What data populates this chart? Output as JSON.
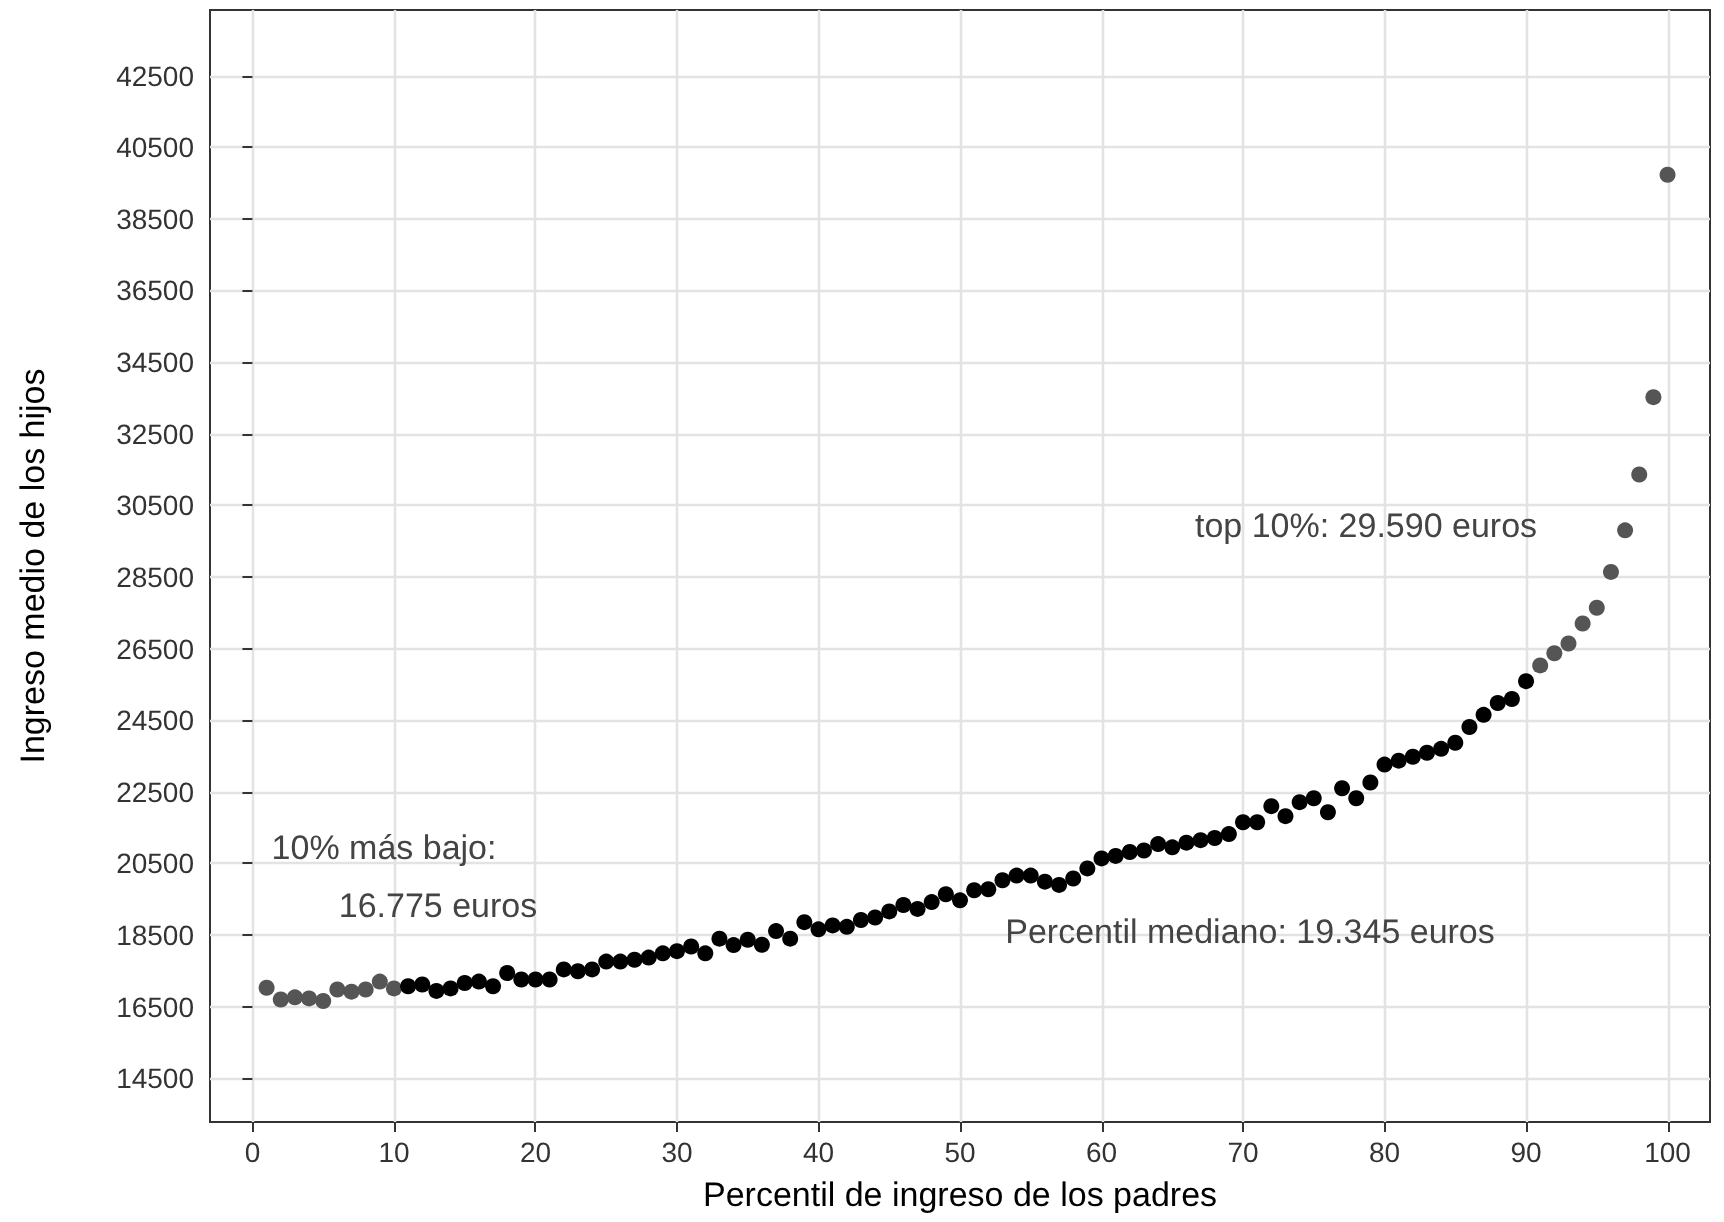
{
  "chart_data": {
    "type": "scatter",
    "xlabel": "Percentil de ingreso de los padres",
    "ylabel": "Ingreso medio de los hijos",
    "x": [
      1,
      2,
      3,
      4,
      5,
      6,
      7,
      8,
      9,
      10,
      11,
      12,
      13,
      14,
      15,
      16,
      17,
      18,
      19,
      20,
      21,
      22,
      23,
      24,
      25,
      26,
      27,
      28,
      29,
      30,
      31,
      32,
      33,
      34,
      35,
      36,
      37,
      38,
      39,
      40,
      41,
      42,
      43,
      44,
      45,
      46,
      47,
      48,
      49,
      50,
      51,
      52,
      53,
      54,
      55,
      56,
      57,
      58,
      59,
      60,
      61,
      62,
      63,
      64,
      65,
      66,
      67,
      68,
      69,
      70,
      71,
      72,
      73,
      74,
      75,
      76,
      77,
      78,
      79,
      80,
      81,
      82,
      83,
      84,
      85,
      86,
      87,
      88,
      89,
      90,
      91,
      92,
      93,
      94,
      95,
      96,
      97,
      98,
      99,
      100
    ],
    "values": [
      17030,
      16700,
      16760,
      16730,
      16660,
      16980,
      16920,
      16980,
      17200,
      17010,
      17070,
      17120,
      16940,
      17010,
      17160,
      17200,
      17070,
      17440,
      17260,
      17260,
      17260,
      17540,
      17490,
      17540,
      17760,
      17760,
      17810,
      17870,
      17990,
      18050,
      18180,
      17990,
      18400,
      18220,
      18370,
      18230,
      18610,
      18400,
      18860,
      18660,
      18770,
      18730,
      18920,
      18990,
      19160,
      19340,
      19230,
      19420,
      19640,
      19470,
      19750,
      19780,
      20030,
      20160,
      20160,
      19990,
      19900,
      20080,
      20360,
      20640,
      20710,
      20820,
      20860,
      21040,
      20950,
      21080,
      21150,
      21210,
      21320,
      21650,
      21650,
      22100,
      21820,
      22210,
      22320,
      21930,
      22600,
      22320,
      22760,
      23260,
      23370,
      23480,
      23590,
      23700,
      23870,
      24310,
      24650,
      24980,
      25090,
      25590,
      26030,
      26370,
      26640,
      27200,
      27640,
      28640,
      29800,
      31360,
      33520,
      39730
    ],
    "colors": [
      "#555555",
      "#555555",
      "#555555",
      "#555555",
      "#555555",
      "#555555",
      "#555555",
      "#555555",
      "#555555",
      "#555555",
      "#000000",
      "#000000",
      "#000000",
      "#000000",
      "#000000",
      "#000000",
      "#000000",
      "#000000",
      "#000000",
      "#000000",
      "#000000",
      "#000000",
      "#000000",
      "#000000",
      "#000000",
      "#000000",
      "#000000",
      "#000000",
      "#000000",
      "#000000",
      "#000000",
      "#000000",
      "#000000",
      "#000000",
      "#000000",
      "#000000",
      "#000000",
      "#000000",
      "#000000",
      "#000000",
      "#000000",
      "#000000",
      "#000000",
      "#000000",
      "#000000",
      "#000000",
      "#000000",
      "#000000",
      "#000000",
      "#000000",
      "#000000",
      "#000000",
      "#000000",
      "#000000",
      "#000000",
      "#000000",
      "#000000",
      "#000000",
      "#000000",
      "#000000",
      "#000000",
      "#000000",
      "#000000",
      "#000000",
      "#000000",
      "#000000",
      "#000000",
      "#000000",
      "#000000",
      "#000000",
      "#000000",
      "#000000",
      "#000000",
      "#000000",
      "#000000",
      "#000000",
      "#000000",
      "#000000",
      "#000000",
      "#000000",
      "#000000",
      "#000000",
      "#000000",
      "#000000",
      "#000000",
      "#000000",
      "#000000",
      "#000000",
      "#000000",
      "#000000",
      "#555555",
      "#555555",
      "#555555",
      "#555555",
      "#555555",
      "#555555",
      "#555555",
      "#555555",
      "#555555",
      "#555555"
    ],
    "xlim": [
      -3,
      103
    ],
    "xticks": [
      0,
      10,
      20,
      30,
      40,
      50,
      60,
      70,
      80,
      90,
      100
    ],
    "ylim": [
      13280,
      44330
    ],
    "yticks": [
      14500,
      16500,
      18500,
      20500,
      22500,
      24500,
      26500,
      28500,
      30500,
      32500,
      34500,
      36500,
      38500,
      40500,
      42500
    ],
    "grid": true,
    "marker": "circle",
    "annotations": [
      "10% más bajo:",
      "16.775 euros",
      "Percentil mediano: 19.345 euros",
      "top 10%: 29.590 euros"
    ]
  }
}
